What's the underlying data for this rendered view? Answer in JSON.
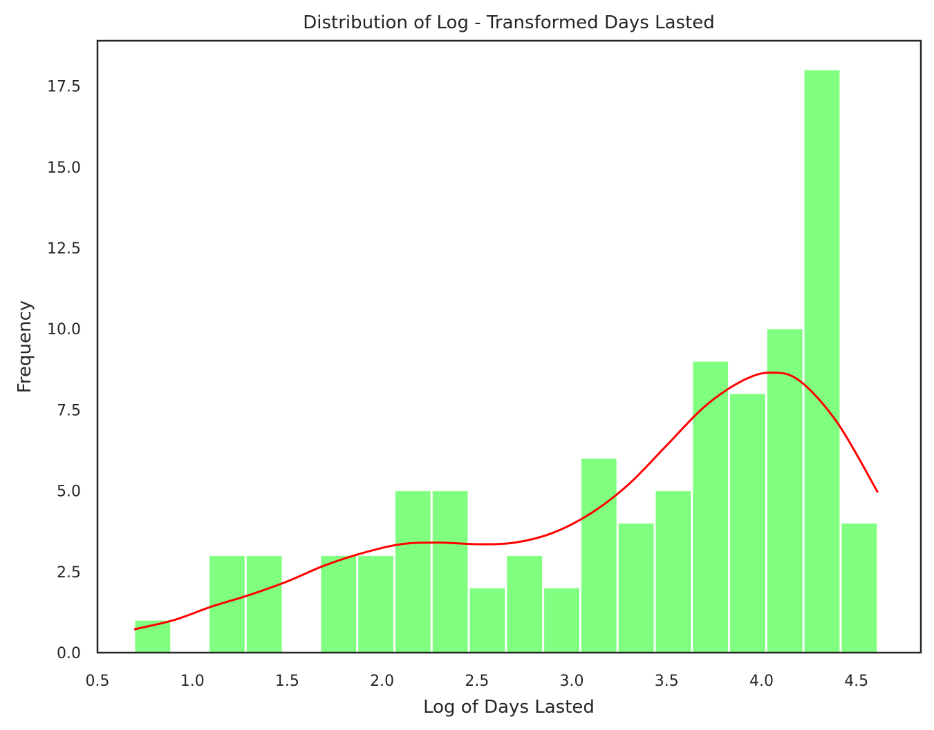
{
  "chart_data": {
    "type": "bar",
    "title": "Distribution of Log - Transformed Days Lasted",
    "xlabel": "Log of Days Lasted",
    "ylabel": "Frequency",
    "xlim": [
      0.5,
      4.84
    ],
    "ylim": [
      0,
      18.9
    ],
    "xticks": [
      "0.5",
      "1.0",
      "1.5",
      "2.0",
      "2.5",
      "3.0",
      "3.5",
      "4.0",
      "4.5"
    ],
    "yticks": [
      "0.0",
      "2.5",
      "5.0",
      "7.5",
      "10.0",
      "12.5",
      "15.0",
      "17.5"
    ],
    "grid": false,
    "legend": "none",
    "bar_color": "#80ff80",
    "kde_color": "#ff0000",
    "bins": [
      {
        "x0": 0.693,
        "x1": 0.889,
        "count": 1
      },
      {
        "x0": 0.889,
        "x1": 1.085,
        "count": 0
      },
      {
        "x0": 1.085,
        "x1": 1.281,
        "count": 3
      },
      {
        "x0": 1.281,
        "x1": 1.477,
        "count": 3
      },
      {
        "x0": 1.477,
        "x1": 1.673,
        "count": 0
      },
      {
        "x0": 1.673,
        "x1": 1.869,
        "count": 3
      },
      {
        "x0": 1.869,
        "x1": 2.065,
        "count": 3
      },
      {
        "x0": 2.065,
        "x1": 2.261,
        "count": 5
      },
      {
        "x0": 2.261,
        "x1": 2.457,
        "count": 5
      },
      {
        "x0": 2.457,
        "x1": 2.653,
        "count": 2
      },
      {
        "x0": 2.653,
        "x1": 2.849,
        "count": 3
      },
      {
        "x0": 2.849,
        "x1": 3.045,
        "count": 2
      },
      {
        "x0": 3.045,
        "x1": 3.241,
        "count": 6
      },
      {
        "x0": 3.241,
        "x1": 3.437,
        "count": 4
      },
      {
        "x0": 3.437,
        "x1": 3.633,
        "count": 5
      },
      {
        "x0": 3.633,
        "x1": 3.829,
        "count": 9
      },
      {
        "x0": 3.829,
        "x1": 4.025,
        "count": 8
      },
      {
        "x0": 4.025,
        "x1": 4.221,
        "count": 10
      },
      {
        "x0": 4.221,
        "x1": 4.417,
        "count": 18
      },
      {
        "x0": 4.417,
        "x1": 4.613,
        "count": 4
      }
    ],
    "kde": [
      [
        0.693,
        0.72
      ],
      [
        0.9,
        1.0
      ],
      [
        1.1,
        1.42
      ],
      [
        1.3,
        1.78
      ],
      [
        1.5,
        2.2
      ],
      [
        1.7,
        2.7
      ],
      [
        1.9,
        3.08
      ],
      [
        2.1,
        3.35
      ],
      [
        2.3,
        3.4
      ],
      [
        2.5,
        3.35
      ],
      [
        2.7,
        3.4
      ],
      [
        2.9,
        3.7
      ],
      [
        3.1,
        4.3
      ],
      [
        3.3,
        5.2
      ],
      [
        3.5,
        6.4
      ],
      [
        3.7,
        7.6
      ],
      [
        3.9,
        8.4
      ],
      [
        4.05,
        8.65
      ],
      [
        4.2,
        8.4
      ],
      [
        4.4,
        7.1
      ],
      [
        4.613,
        4.95
      ]
    ]
  }
}
